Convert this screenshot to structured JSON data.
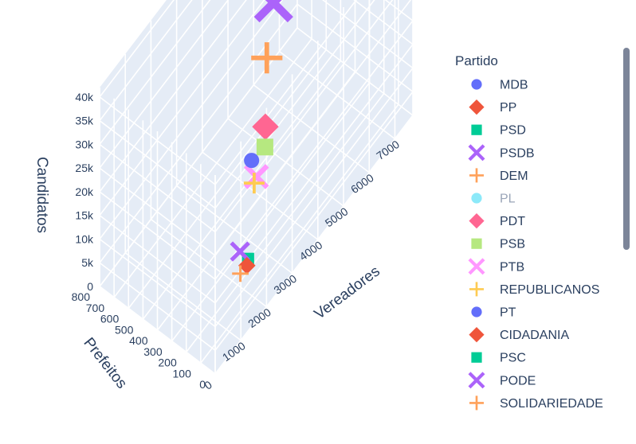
{
  "chart_data": {
    "type": "scatter3d",
    "axes": {
      "x": {
        "title": "Vereadores",
        "ticks": [
          0,
          1000,
          2000,
          3000,
          4000,
          5000,
          6000,
          7000
        ],
        "range": [
          0,
          7700
        ]
      },
      "y": {
        "title": "Prefeitos",
        "ticks": [
          0,
          100,
          200,
          300,
          400,
          500,
          600,
          700,
          800
        ],
        "range": [
          0,
          800
        ]
      },
      "z": {
        "title": "Candidatos",
        "ticks": [
          "0",
          "5k",
          "10k",
          "15k",
          "20k",
          "25k",
          "30k",
          "35k",
          "40k"
        ],
        "tick_values": [
          0,
          5000,
          10000,
          15000,
          20000,
          25000,
          30000,
          35000,
          40000
        ],
        "range": [
          0,
          42000
        ]
      }
    },
    "grid": true,
    "legend": {
      "title": "Partido",
      "placement": "right",
      "items": [
        {
          "name": "MDB",
          "color": "#636efa",
          "symbol": "circle",
          "visible": true
        },
        {
          "name": "PP",
          "color": "#EF553B",
          "symbol": "diamond",
          "visible": true
        },
        {
          "name": "PSD",
          "color": "#00cc96",
          "symbol": "square",
          "visible": true
        },
        {
          "name": "PSDB",
          "color": "#ab63fa",
          "symbol": "x",
          "visible": true
        },
        {
          "name": "DEM",
          "color": "#FFA15A",
          "symbol": "cross",
          "visible": true
        },
        {
          "name": "PL",
          "color": "#19d3f3",
          "symbol": "circle",
          "visible": false
        },
        {
          "name": "PDT",
          "color": "#FF6692",
          "symbol": "diamond",
          "visible": true
        },
        {
          "name": "PSB",
          "color": "#B6E880",
          "symbol": "square",
          "visible": true
        },
        {
          "name": "PTB",
          "color": "#FF97FF",
          "symbol": "x",
          "visible": true
        },
        {
          "name": "REPUBLICANOS",
          "color": "#FECB52",
          "symbol": "cross",
          "visible": true
        },
        {
          "name": "PT",
          "color": "#636efa",
          "symbol": "circle",
          "visible": true
        },
        {
          "name": "CIDADANIA",
          "color": "#EF553B",
          "symbol": "diamond",
          "visible": true
        },
        {
          "name": "PSC",
          "color": "#00cc96",
          "symbol": "square",
          "visible": true
        },
        {
          "name": "PODE",
          "color": "#ab63fa",
          "symbol": "x",
          "visible": true
        },
        {
          "name": "SOLIDARIEDADE",
          "color": "#FFA15A",
          "symbol": "cross",
          "visible": true
        }
      ]
    },
    "points": [
      {
        "party": "MDB",
        "x": 7300,
        "y": 780,
        "z": 40500
      },
      {
        "party": "PP",
        "x": 6600,
        "y": 680,
        "z": 33500
      },
      {
        "party": "PSD",
        "x": 6400,
        "y": 650,
        "z": 32800
      },
      {
        "party": "PSDB",
        "x": 5200,
        "y": 520,
        "z": 29500
      },
      {
        "party": "DEM",
        "x": 4600,
        "y": 460,
        "z": 23500
      },
      {
        "party": "PDT",
        "x": 3700,
        "y": 310,
        "z": 18800
      },
      {
        "party": "PSB",
        "x": 3400,
        "y": 260,
        "z": 17800
      },
      {
        "party": "PTB",
        "x": 2900,
        "y": 230,
        "z": 15800
      },
      {
        "party": "REPUBLICANOS",
        "x": 2700,
        "y": 210,
        "z": 16300
      },
      {
        "party": "PT",
        "x": 2600,
        "y": 210,
        "z": 21800
      },
      {
        "party": "CIDADANIA",
        "x": 1800,
        "y": 100,
        "z": 7800
      },
      {
        "party": "PSC",
        "x": 1900,
        "y": 110,
        "z": 8300
      },
      {
        "party": "PODE",
        "x": 1700,
        "y": 130,
        "z": 10800
      },
      {
        "party": "SOLIDARIEDADE",
        "x": 1600,
        "y": 110,
        "z": 7300
      },
      {
        "party": "PL",
        "x": 2000,
        "y": 120,
        "z": 11000
      }
    ]
  }
}
